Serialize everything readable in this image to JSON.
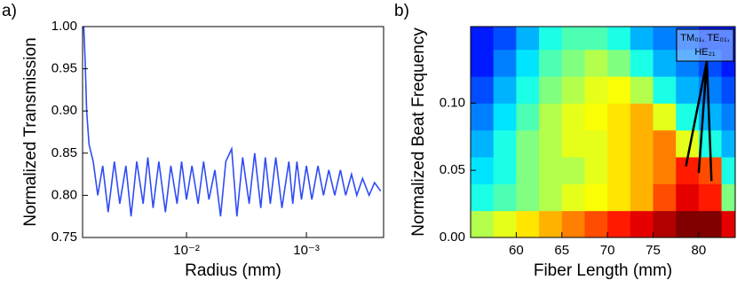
{
  "chart_data": [
    {
      "type": "line",
      "panel_label": "a)",
      "x_label": "Radius (mm)",
      "y_label": "Normalized Transmission",
      "log_x": true,
      "color": "#2f4cf5",
      "xlim": [
        0.0736,
        0.000227
      ],
      "xticks": [
        {
          "value": 0.01,
          "label": "10⁻²"
        },
        {
          "value": 0.001,
          "label": "10⁻³"
        }
      ],
      "ylim": [
        0.75,
        1.0
      ],
      "yticks": [
        {
          "value": 0.75,
          "label": "0.75"
        },
        {
          "value": 0.8,
          "label": "0.80"
        },
        {
          "value": 0.85,
          "label": "0.85"
        },
        {
          "value": 0.9,
          "label": "0.90"
        },
        {
          "value": 0.95,
          "label": "0.95"
        },
        {
          "value": 1.0,
          "label": "1.00"
        }
      ],
      "x": [
        0.072,
        0.07,
        0.068,
        0.065,
        0.06,
        0.055,
        0.05,
        0.045,
        0.04,
        0.036,
        0.032,
        0.029,
        0.026,
        0.023,
        0.021,
        0.019,
        0.017,
        0.015,
        0.0135,
        0.012,
        0.011,
        0.01,
        0.009,
        0.008,
        0.0072,
        0.0065,
        0.0058,
        0.0052,
        0.0047,
        0.0042,
        0.0038,
        0.0034,
        0.003,
        0.0027,
        0.0024,
        0.0022,
        0.002,
        0.0018,
        0.0016,
        0.0014,
        0.0013,
        0.0012,
        0.0011,
        0.001,
        0.0009,
        0.0008,
        0.00072,
        0.00065,
        0.00058,
        0.00052,
        0.00047,
        0.00042,
        0.00038,
        0.00034,
        0.0003,
        0.00027,
        0.00024
      ],
      "values": [
        1.0,
        0.96,
        0.9,
        0.86,
        0.84,
        0.8,
        0.835,
        0.78,
        0.84,
        0.79,
        0.835,
        0.775,
        0.84,
        0.79,
        0.845,
        0.785,
        0.84,
        0.78,
        0.835,
        0.79,
        0.84,
        0.795,
        0.835,
        0.79,
        0.84,
        0.795,
        0.83,
        0.775,
        0.84,
        0.855,
        0.775,
        0.845,
        0.79,
        0.85,
        0.785,
        0.845,
        0.79,
        0.845,
        0.785,
        0.84,
        0.79,
        0.84,
        0.795,
        0.835,
        0.795,
        0.835,
        0.8,
        0.83,
        0.8,
        0.83,
        0.8,
        0.825,
        0.8,
        0.82,
        0.8,
        0.815,
        0.805
      ]
    },
    {
      "type": "heatmap",
      "panel_label": "b)",
      "x_label": "Fiber Length (mm)",
      "y_label": "Normalized Beat Frequency",
      "colormap": "jet",
      "xlim": [
        55,
        84
      ],
      "xticks": [
        60,
        65,
        70,
        75,
        80
      ],
      "ylim": [
        0,
        0.157
      ],
      "yticks": [
        {
          "value": 0,
          "label": "0.00"
        },
        {
          "value": 0.05,
          "label": "0.05"
        },
        {
          "value": 0.1,
          "label": "0.10"
        }
      ],
      "x_bins": [
        55,
        57.5,
        60,
        62.5,
        65,
        67.5,
        70,
        72.5,
        75,
        77.5,
        80,
        82.5,
        84
      ],
      "y_bins": [
        0,
        0.02,
        0.04,
        0.06,
        0.08,
        0.1,
        0.12,
        0.14,
        0.157
      ],
      "z": [
        [
          0.55,
          0.6,
          0.65,
          0.7,
          0.75,
          0.8,
          0.85,
          0.9,
          0.95,
          1,
          1,
          0.9
        ],
        [
          0.4,
          0.45,
          0.5,
          0.55,
          0.6,
          0.62,
          0.65,
          0.7,
          0.8,
          0.9,
          0.85,
          0.5
        ],
        [
          0.35,
          0.4,
          0.5,
          0.55,
          0.55,
          0.6,
          0.65,
          0.7,
          0.75,
          0.85,
          0.8,
          0.4
        ],
        [
          0.3,
          0.4,
          0.5,
          0.55,
          0.6,
          0.6,
          0.65,
          0.7,
          0.75,
          0.6,
          0.4,
          0.3
        ],
        [
          0.25,
          0.35,
          0.45,
          0.55,
          0.6,
          0.62,
          0.65,
          0.7,
          0.6,
          0.4,
          0.3,
          0.25
        ],
        [
          0.2,
          0.3,
          0.4,
          0.5,
          0.55,
          0.6,
          0.62,
          0.55,
          0.4,
          0.3,
          0.25,
          0.2
        ],
        [
          0.15,
          0.25,
          0.35,
          0.45,
          0.5,
          0.55,
          0.5,
          0.4,
          0.3,
          0.25,
          0.2,
          0.15
        ],
        [
          0.15,
          0.2,
          0.3,
          0.4,
          0.45,
          0.45,
          0.4,
          0.3,
          0.25,
          0.2,
          0.15,
          0.15
        ]
      ],
      "annotation": {
        "text": [
          "TM₀₁, TE₀₁,",
          "HE₂₁"
        ],
        "x": [
          78.6,
          80.0,
          81.4
        ],
        "y": [
          0.053,
          0.048,
          0.042
        ]
      }
    }
  ]
}
